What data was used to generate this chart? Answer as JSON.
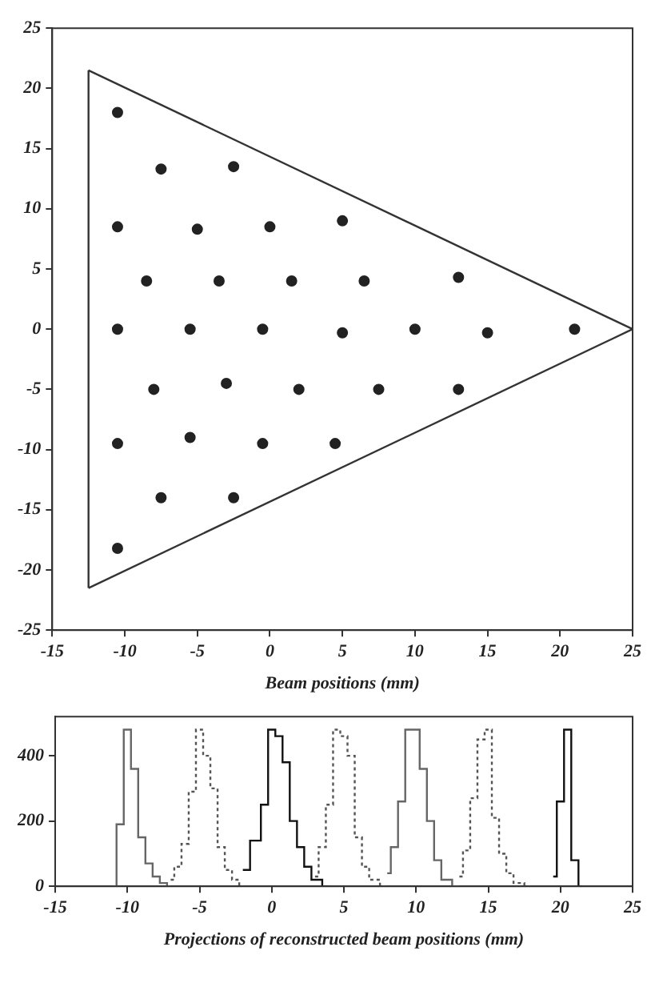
{
  "chart_data": [
    {
      "type": "scatter",
      "xlabel": "Beam positions (mm)",
      "xlim": [
        -15,
        25
      ],
      "xticks": [
        -15,
        -10,
        -5,
        0,
        5,
        10,
        15,
        20,
        25
      ],
      "ylim": [
        -25,
        25
      ],
      "yticks": [
        -25,
        -20,
        -15,
        -10,
        -5,
        0,
        5,
        10,
        15,
        20,
        25
      ],
      "grid": false,
      "legend": false,
      "marker": "circle",
      "series": [
        {
          "color": "#222222",
          "x": [
            -10.5,
            -7.5,
            -2.5,
            -10.5,
            -5,
            0,
            5,
            -8.5,
            -3.5,
            1.5,
            6.5,
            13,
            -10.5,
            -5.5,
            -0.5,
            5,
            10,
            15,
            21,
            -8,
            -3,
            2,
            7.5,
            13,
            -10.5,
            -5.5,
            -0.5,
            4.5,
            -7.5,
            -2.5,
            -10.5
          ],
          "values": [
            18,
            13.3,
            13.5,
            8.5,
            8.3,
            8.5,
            9,
            4,
            4,
            4,
            4,
            4.3,
            0,
            0,
            0,
            -0.3,
            0,
            -0.3,
            0,
            -5,
            -4.5,
            -5,
            -5,
            -5,
            -9.5,
            -9,
            -9.5,
            -9.5,
            -14,
            -14,
            -18.2
          ]
        },
        {
          "type": "line",
          "color": "#333333",
          "marker": "none",
          "line_style": "solid",
          "x": [
            -12.5,
            25
          ],
          "values": [
            21.5,
            0
          ]
        },
        {
          "type": "line",
          "color": "#333333",
          "marker": "none",
          "line_style": "solid",
          "x": [
            -12.5,
            25
          ],
          "values": [
            -21.5,
            0
          ]
        },
        {
          "type": "line",
          "color": "#333333",
          "marker": "none",
          "line_style": "solid",
          "x": [
            -12.5,
            -12.5
          ],
          "values": [
            -21.5,
            21.5
          ]
        }
      ]
    },
    {
      "type": "step",
      "xlabel": "Projections of reconstructed beam positions (mm)",
      "xlim": [
        -15,
        25
      ],
      "xticks": [
        -15,
        -10,
        -5,
        0,
        5,
        10,
        15,
        20,
        25
      ],
      "ylim": [
        0,
        520
      ],
      "yticks": [
        0,
        200,
        400
      ],
      "grid": false,
      "legend": false,
      "marker": "none",
      "series": [
        {
          "color": "#666666",
          "line_style": "solid",
          "x": [
            -11,
            -10.5,
            -10,
            -9.5,
            -9,
            -8.5,
            -8,
            -7.5,
            -7
          ],
          "values": [
            0,
            190,
            480,
            360,
            150,
            70,
            30,
            10,
            0
          ]
        },
        {
          "color": "#555555",
          "line_style": "dotted",
          "x": [
            -7,
            -6.5,
            -6,
            -5.5,
            -5,
            -4.5,
            -4,
            -3.5,
            -3,
            -2.5,
            -2
          ],
          "values": [
            20,
            60,
            130,
            290,
            480,
            400,
            300,
            120,
            50,
            20,
            0
          ]
        },
        {
          "color": "#111111",
          "line_style": "solid",
          "x": [
            -2,
            -1,
            -0.5,
            0,
            0.5,
            1,
            1.5,
            2,
            2.5,
            3,
            4
          ],
          "values": [
            50,
            140,
            250,
            480,
            460,
            380,
            200,
            120,
            60,
            20,
            0
          ]
        },
        {
          "color": "#555555",
          "line_style": "dotted",
          "x": [
            3,
            3.5,
            4,
            4.5,
            5,
            5.5,
            6,
            6.5,
            7,
            8
          ],
          "values": [
            30,
            120,
            250,
            480,
            460,
            400,
            150,
            60,
            20,
            0
          ]
        },
        {
          "color": "#666666",
          "line_style": "solid",
          "x": [
            8,
            8.5,
            9,
            9.5,
            10,
            10.5,
            11,
            11.5,
            12,
            13
          ],
          "values": [
            40,
            120,
            260,
            480,
            480,
            360,
            200,
            80,
            20,
            0
          ]
        },
        {
          "color": "#555555",
          "line_style": "dotted",
          "x": [
            13,
            13.5,
            14,
            14.5,
            15,
            15.5,
            16,
            16.5,
            17,
            18
          ],
          "values": [
            30,
            110,
            270,
            450,
            480,
            210,
            100,
            40,
            10,
            0
          ]
        },
        {
          "color": "#111111",
          "line_style": "solid",
          "x": [
            19.5,
            20,
            20.5,
            21,
            21.5
          ],
          "values": [
            30,
            260,
            480,
            80,
            0
          ]
        }
      ]
    }
  ]
}
